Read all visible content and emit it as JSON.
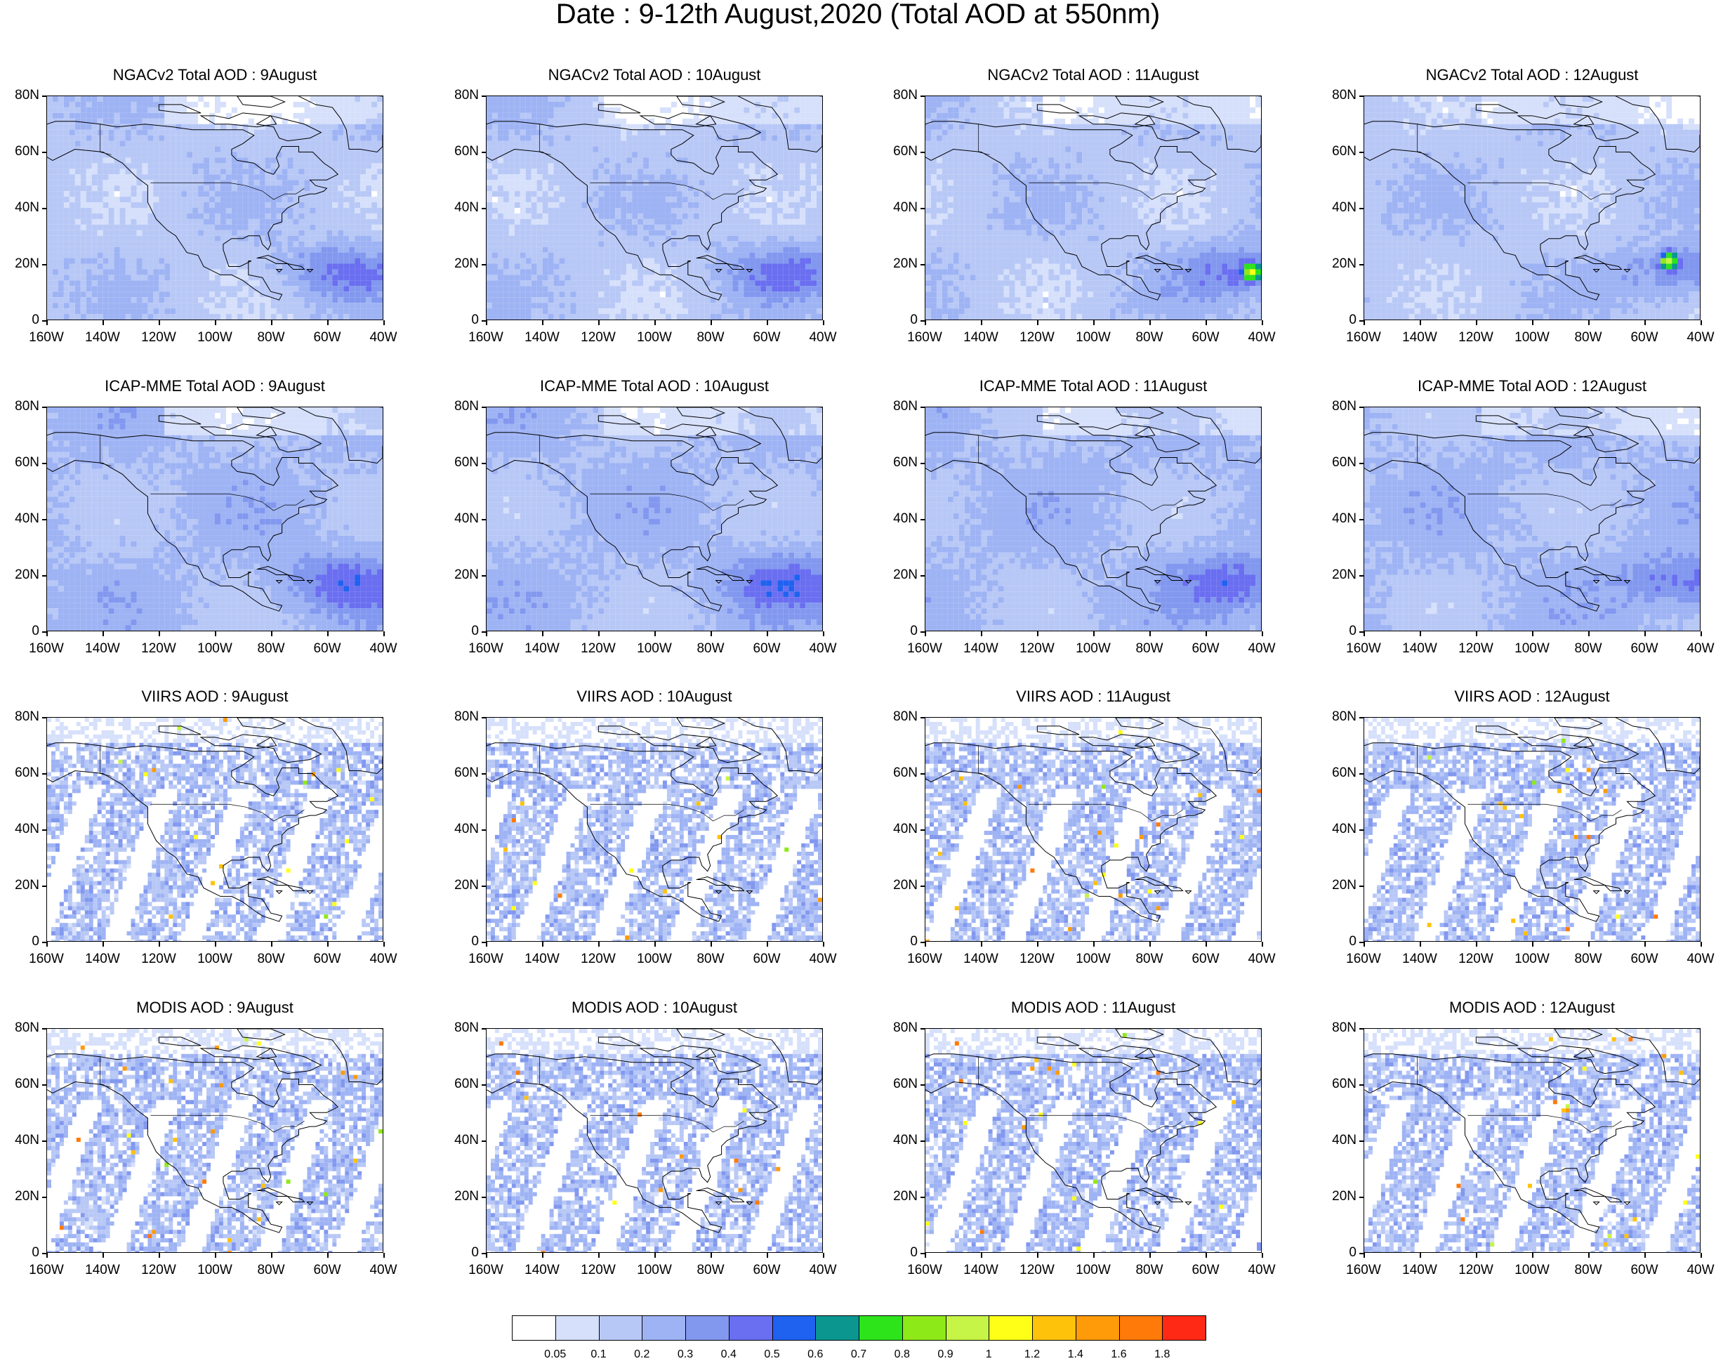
{
  "title": "Date : 9-12th August,2020 (Total AOD at 550nm)",
  "columns": [
    "9August",
    "10August",
    "11August",
    "12August"
  ],
  "panel_titles": [
    [
      "NGACv2 Total AOD : 9August",
      "NGACv2 Total AOD : 10August",
      "NGACv2 Total AOD : 11August",
      "NGACv2 Total AOD : 12August"
    ],
    [
      "ICAP-MME Total AOD : 9August",
      "ICAP-MME Total AOD : 10August",
      "ICAP-MME Total AOD : 11August",
      "ICAP-MME Total AOD : 12August"
    ],
    [
      "VIIRS AOD : 9August",
      "VIIRS AOD : 10August",
      "VIIRS AOD : 11August",
      "VIIRS AOD : 12August"
    ],
    [
      "MODIS AOD : 9August",
      "MODIS AOD : 10August",
      "MODIS AOD : 11August",
      "MODIS AOD : 12August"
    ]
  ],
  "map_extent": {
    "lon": [
      -160,
      -40
    ],
    "lat": [
      0,
      80
    ]
  },
  "lat_labels": [
    "0",
    "20N",
    "40N",
    "60N",
    "80N"
  ],
  "lon_labels": [
    "160W",
    "140W",
    "120W",
    "100W",
    "80W",
    "60W",
    "40W"
  ],
  "colorbar": {
    "labels": [
      "0.05",
      "0.1",
      "0.2",
      "0.3",
      "0.4",
      "0.5",
      "0.6",
      "0.7",
      "0.8",
      "0.9",
      "1",
      "1.2",
      "1.4",
      "1.6",
      "1.8"
    ],
    "colors": [
      "#ffffff",
      "#d6e0fb",
      "#b8c8f6",
      "#9eb3f4",
      "#8298ef",
      "#6a6ef0",
      "#1f62f0",
      "#0c9690",
      "#2de41b",
      "#8ee919",
      "#c6f447",
      "#ffff17",
      "#ffc20a",
      "#ff9a09",
      "#ff7a08",
      "#ff2916"
    ]
  }
}
